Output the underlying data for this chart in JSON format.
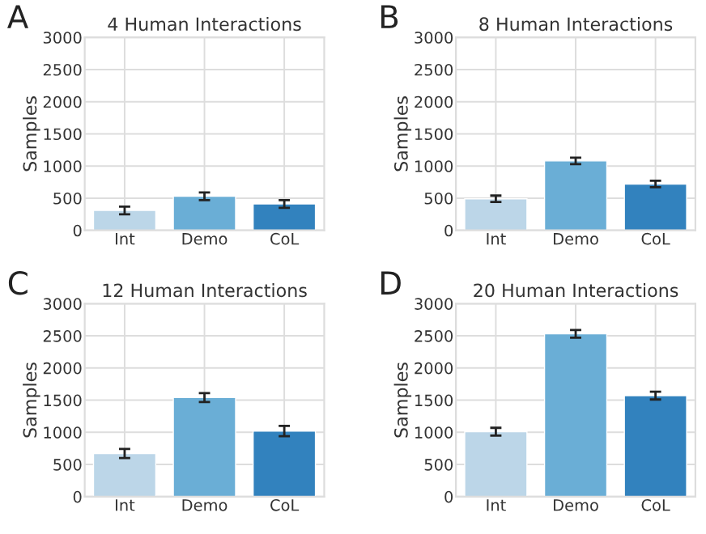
{
  "chart_data": [
    {
      "type": "bar",
      "title": "4 Human Interactions",
      "ylabel": "Samples",
      "annotations": [
        "A"
      ],
      "categories": [
        "Int",
        "Demo",
        "CoL"
      ],
      "values": [
        310,
        530,
        410
      ],
      "errors": [
        60,
        60,
        60
      ],
      "colors": [
        "#bcd6e8",
        "#6aaed6",
        "#3282be"
      ],
      "ylim": [
        0,
        3000
      ],
      "yticks": [
        0,
        500,
        1000,
        1500,
        2000,
        2500,
        3000
      ],
      "grid": true
    },
    {
      "type": "bar",
      "title": "8 Human Interactions",
      "ylabel": "Samples",
      "annotations": [
        "B"
      ],
      "categories": [
        "Int",
        "Demo",
        "CoL"
      ],
      "values": [
        490,
        1080,
        720
      ],
      "errors": [
        50,
        50,
        50
      ],
      "colors": [
        "#bcd6e8",
        "#6aaed6",
        "#3282be"
      ],
      "ylim": [
        0,
        3000
      ],
      "yticks": [
        0,
        500,
        1000,
        1500,
        2000,
        2500,
        3000
      ],
      "grid": true
    },
    {
      "type": "bar",
      "title": "12 Human Interactions",
      "ylabel": "Samples",
      "annotations": [
        "C"
      ],
      "categories": [
        "Int",
        "Demo",
        "CoL"
      ],
      "values": [
        670,
        1540,
        1020
      ],
      "errors": [
        70,
        70,
        80
      ],
      "colors": [
        "#bcd6e8",
        "#6aaed6",
        "#3282be"
      ],
      "ylim": [
        0,
        3000
      ],
      "yticks": [
        0,
        500,
        1000,
        1500,
        2000,
        2500,
        3000
      ],
      "grid": true
    },
    {
      "type": "bar",
      "title": "20 Human Interactions",
      "ylabel": "Samples",
      "annotations": [
        "D"
      ],
      "categories": [
        "Int",
        "Demo",
        "CoL"
      ],
      "values": [
        1010,
        2530,
        1570
      ],
      "errors": [
        60,
        60,
        60
      ],
      "colors": [
        "#bcd6e8",
        "#6aaed6",
        "#3282be"
      ],
      "ylim": [
        0,
        3000
      ],
      "yticks": [
        0,
        500,
        1000,
        1500,
        2000,
        2500,
        3000
      ],
      "grid": true
    }
  ]
}
